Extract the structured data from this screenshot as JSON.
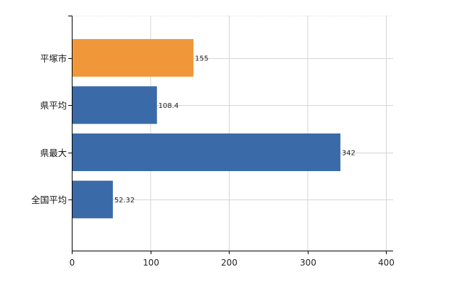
{
  "chart_data": {
    "type": "bar",
    "orientation": "horizontal",
    "categories": [
      "平塚市",
      "県平均",
      "県最大",
      "全国平均"
    ],
    "values": [
      155,
      108.4,
      342,
      52.32
    ],
    "value_labels": [
      "155",
      "108.4",
      "342",
      "52.32"
    ],
    "bar_colors": [
      "#f0973a",
      "#3a6aa8",
      "#3a6aa8",
      "#3a6aa8"
    ],
    "xlim": [
      0,
      400
    ],
    "xticks": [
      0,
      100,
      200,
      300,
      400
    ],
    "xtick_labels": [
      "0",
      "100",
      "200",
      "300",
      "400"
    ],
    "grid": true,
    "title": "",
    "xlabel": "",
    "ylabel": ""
  }
}
